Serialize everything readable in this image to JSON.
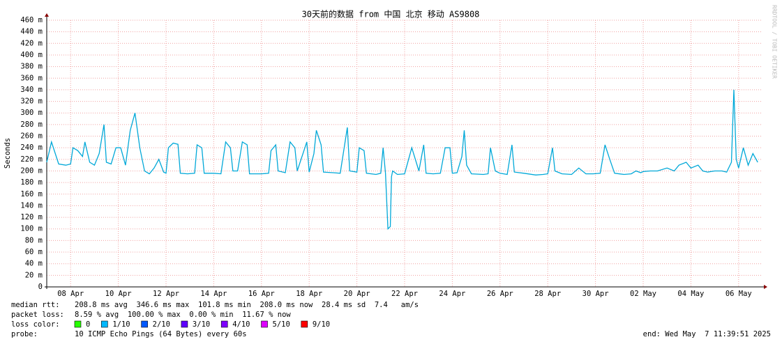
{
  "chart_data": {
    "type": "line",
    "title": "30天前的数据 from 中国 北京 移动 AS9808",
    "y_label": "Seconds",
    "side_text": "RRDTOOL / TOBI OETIKER",
    "xlim": [
      0,
      30
    ],
    "xticks": [
      {
        "value": 1,
        "label": "08 Apr"
      },
      {
        "value": 3,
        "label": "10 Apr"
      },
      {
        "value": 5,
        "label": "12 Apr"
      },
      {
        "value": 7,
        "label": "14 Apr"
      },
      {
        "value": 9,
        "label": "16 Apr"
      },
      {
        "value": 11,
        "label": "18 Apr"
      },
      {
        "value": 13,
        "label": "20 Apr"
      },
      {
        "value": 15,
        "label": "22 Apr"
      },
      {
        "value": 17,
        "label": "24 Apr"
      },
      {
        "value": 19,
        "label": "26 Apr"
      },
      {
        "value": 21,
        "label": "28 Apr"
      },
      {
        "value": 23,
        "label": "30 Apr"
      },
      {
        "value": 25,
        "label": "02 May"
      },
      {
        "value": 27,
        "label": "04 May"
      },
      {
        "value": 29,
        "label": "06 May"
      }
    ],
    "ylim": [
      0,
      460
    ],
    "yticks": [
      0,
      {
        "value": 20,
        "label": "20 m"
      },
      {
        "value": 40,
        "label": "40 m"
      },
      {
        "value": 60,
        "label": "60 m"
      },
      {
        "value": 80,
        "label": "80 m"
      },
      {
        "value": 100,
        "label": "100 m"
      },
      {
        "value": 120,
        "label": "120 m"
      },
      {
        "value": 140,
        "label": "140 m"
      },
      {
        "value": 160,
        "label": "160 m"
      },
      {
        "value": 180,
        "label": "180 m"
      },
      {
        "value": 200,
        "label": "200 m"
      },
      {
        "value": 220,
        "label": "220 m"
      },
      {
        "value": 240,
        "label": "240 m"
      },
      {
        "value": 260,
        "label": "260 m"
      },
      {
        "value": 280,
        "label": "280 m"
      },
      {
        "value": 300,
        "label": "300 m"
      },
      {
        "value": 320,
        "label": "320 m"
      },
      {
        "value": 340,
        "label": "340 m"
      },
      {
        "value": 360,
        "label": "360 m"
      },
      {
        "value": 380,
        "label": "380 m"
      },
      {
        "value": 400,
        "label": "400 m"
      },
      {
        "value": 420,
        "label": "420 m"
      },
      {
        "value": 440,
        "label": "440 m"
      },
      {
        "value": 460,
        "label": "460 m"
      }
    ],
    "grid": true,
    "color": "#00a8d8",
    "x": [
      0,
      0.2,
      0.5,
      0.8,
      1,
      1.1,
      1.3,
      1.5,
      1.6,
      1.8,
      2,
      2.2,
      2.4,
      2.5,
      2.7,
      2.9,
      3.1,
      3.3,
      3.5,
      3.7,
      3.9,
      4.1,
      4.3,
      4.5,
      4.7,
      4.9,
      5,
      5.1,
      5.3,
      5.5,
      5.6,
      5.9,
      6.2,
      6.3,
      6.5,
      6.6,
      7,
      7.3,
      7.5,
      7.7,
      7.8,
      8,
      8.2,
      8.4,
      8.5,
      9,
      9.3,
      9.4,
      9.6,
      9.7,
      10,
      10.2,
      10.4,
      10.5,
      10.9,
      11,
      11.2,
      11.3,
      11.5,
      11.6,
      12,
      12.3,
      12.6,
      12.7,
      13,
      13.1,
      13.3,
      13.4,
      13.8,
      14,
      14.1,
      14.2,
      14.3,
      14.4,
      14.45,
      14.5,
      14.7,
      15,
      15.3,
      15.6,
      15.8,
      15.9,
      16.2,
      16.5,
      16.7,
      16.9,
      17,
      17.2,
      17.4,
      17.5,
      17.6,
      17.8,
      18.3,
      18.5,
      18.6,
      18.8,
      19,
      19.3,
      19.5,
      19.6,
      20,
      20.5,
      20.8,
      21,
      21.2,
      21.3,
      21.6,
      22,
      22.3,
      22.6,
      22.9,
      23.2,
      23.4,
      23.6,
      23.8,
      24.2,
      24.5,
      24.7,
      24.9,
      25,
      25.3,
      25.6,
      26,
      26.3,
      26.5,
      26.8,
      27,
      27.3,
      27.5,
      27.7,
      28,
      28.3,
      28.5,
      28.7,
      28.8,
      28.9,
      29,
      29.2,
      29.4,
      29.6,
      29.8
    ],
    "values": [
      215,
      250,
      212,
      210,
      212,
      240,
      235,
      225,
      250,
      215,
      210,
      230,
      280,
      215,
      212,
      240,
      240,
      210,
      270,
      300,
      240,
      200,
      195,
      205,
      220,
      198,
      196,
      240,
      248,
      246,
      196,
      195,
      196,
      245,
      240,
      196,
      196,
      195,
      250,
      240,
      200,
      200,
      250,
      245,
      195,
      195,
      196,
      235,
      245,
      200,
      197,
      250,
      240,
      200,
      250,
      198,
      230,
      270,
      245,
      198,
      197,
      196,
      275,
      200,
      198,
      240,
      235,
      196,
      194,
      196,
      240,
      196,
      100,
      104,
      190,
      200,
      194,
      195,
      240,
      200,
      245,
      196,
      195,
      196,
      240,
      240,
      196,
      197,
      225,
      270,
      210,
      195,
      194,
      195,
      240,
      200,
      196,
      194,
      245,
      198,
      196,
      193,
      194,
      195,
      240,
      200,
      195,
      194,
      205,
      195,
      195,
      196,
      245,
      220,
      196,
      194,
      195,
      200,
      197,
      199,
      200,
      200,
      205,
      200,
      210,
      215,
      205,
      210,
      200,
      198,
      200,
      200,
      198,
      215,
      340,
      220,
      205,
      240,
      210,
      230,
      215
    ],
    "loss_legend": {
      "label": "loss color:",
      "series": [
        {
          "name": "0",
          "color": "#26ff00"
        },
        {
          "name": "1/10",
          "color": "#00b8ff"
        },
        {
          "name": "2/10",
          "color": "#0059ff"
        },
        {
          "name": "3/10",
          "color": "#5e00ff"
        },
        {
          "name": "4/10",
          "color": "#7e00ff"
        },
        {
          "name": "5/10",
          "color": "#dd00ff"
        },
        {
          "name": "9/10",
          "color": "#ff0000"
        }
      ]
    },
    "stats": [
      {
        "label": "median rtt:",
        "text": "208.8 ms avg  346.6 ms max  101.8 ms min  208.0 ms now  28.4 ms sd  7.4   am/s"
      },
      {
        "label": "packet loss:",
        "text": "8.59 % avg  100.00 % max  0.00 % min  11.67 % now"
      }
    ],
    "probe": {
      "label": "probe:",
      "text": "10 ICMP Echo Pings (64 Bytes) every 60s"
    },
    "end": "end: Wed May  7 11:39:51 2025"
  }
}
